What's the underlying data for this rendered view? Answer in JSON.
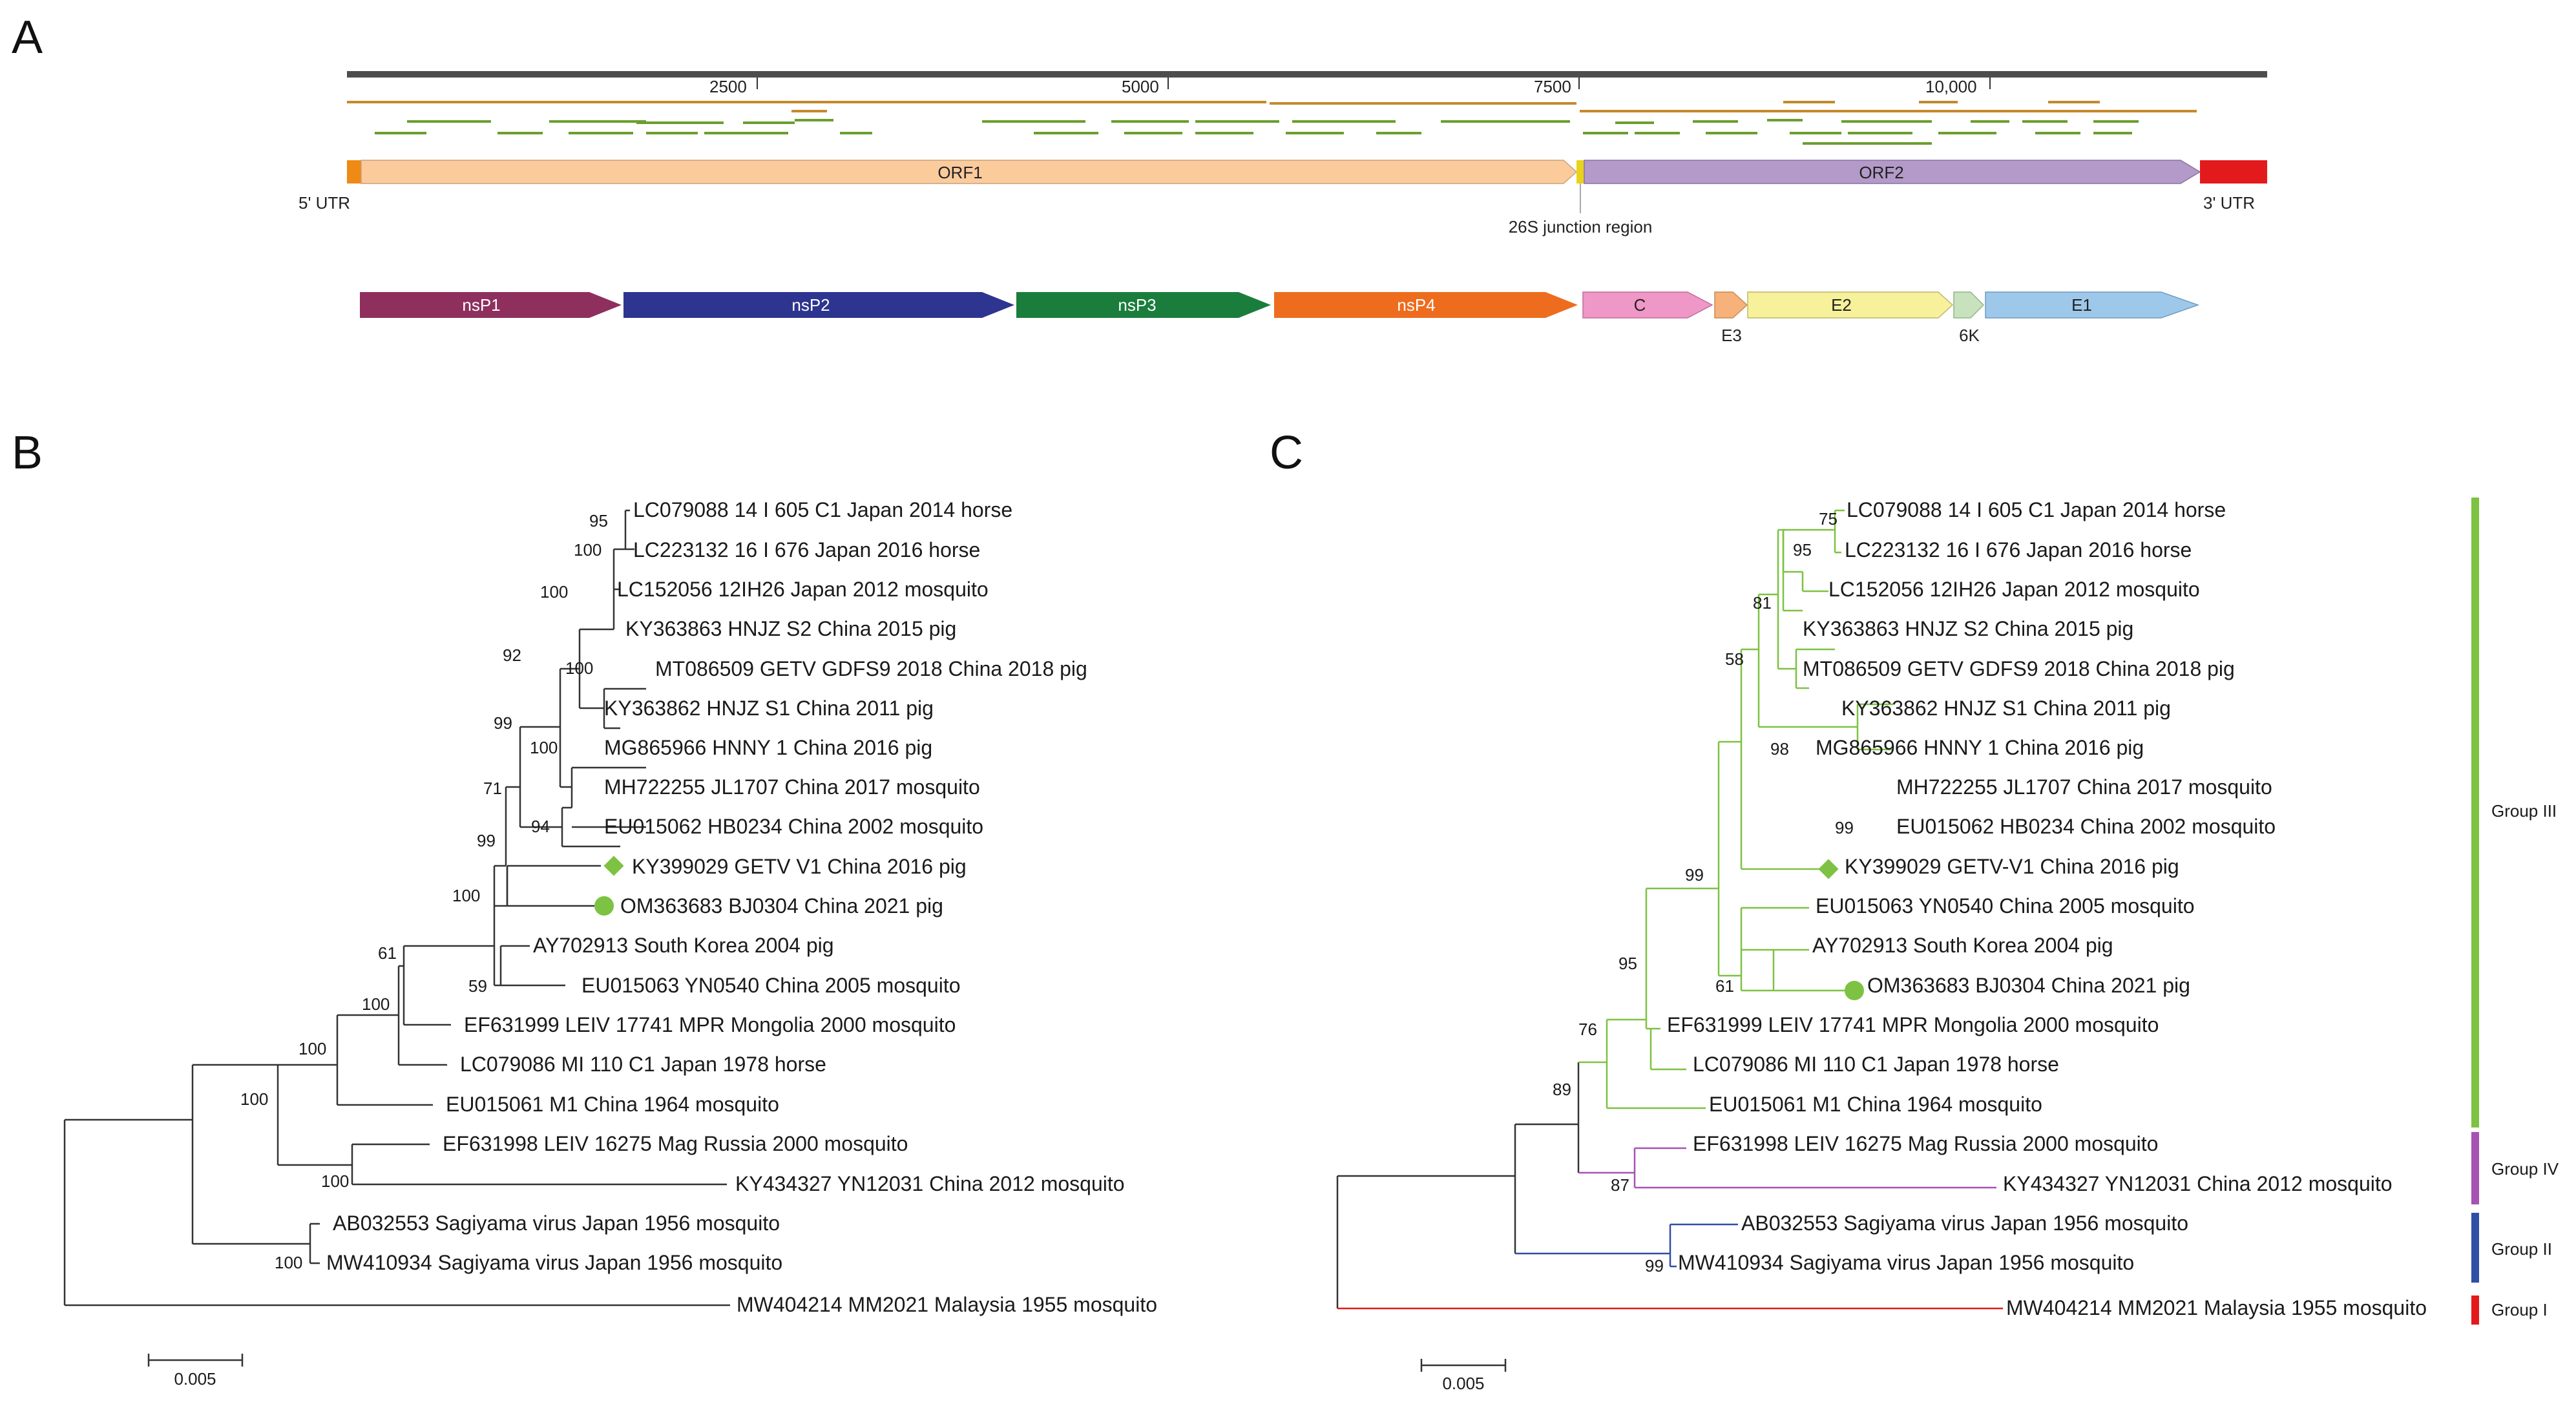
{
  "panels": {
    "a": "A",
    "b": "B",
    "c": "C"
  },
  "genome": {
    "ticks": [
      "2500",
      "5000",
      "7500",
      "10,000"
    ],
    "utr5": "5' UTR",
    "utr3": "3' UTR",
    "orf1": "ORF1",
    "orf2": "ORF2",
    "junction": "26S junction region",
    "proteins": [
      "nsP1",
      "nsP2",
      "nsP3",
      "nsP4",
      "C",
      "E2",
      "E1"
    ],
    "small_labels": [
      "E3",
      "6K"
    ]
  },
  "tree_b": {
    "leaves": [
      "LC079088 14 I 605 C1 Japan 2014 horse",
      "LC223132 16 I 676 Japan 2016 horse",
      "LC152056 12IH26 Japan 2012 mosquito",
      "KY363863 HNJZ S2 China 2015 pig",
      "MT086509 GETV GDFS9 2018 China 2018 pig",
      "KY363862 HNJZ S1 China 2011 pig",
      "MG865966 HNNY 1 China 2016 pig",
      "MH722255 JL1707 China 2017 mosquito",
      "EU015062 HB0234 China 2002 mosquito",
      "KY399029 GETV V1 China 2016 pig",
      "OM363683 BJ0304 China 2021 pig",
      "AY702913 South Korea 2004 pig",
      "EU015063 YN0540 China 2005 mosquito",
      "EF631999 LEIV 17741 MPR Mongolia 2000 mosquito",
      "LC079086 MI 110 C1 Japan 1978 horse",
      "EU015061 M1 China 1964 mosquito",
      "EF631998 LEIV 16275 Mag Russia 2000 mosquito",
      "KY434327 YN12031 China 2012 mosquito",
      "AB032553 Sagiyama virus Japan 1956 mosquito",
      "MW410934 Sagiyama virus Japan 1956 mosquito",
      "MW404214 MM2021 Malaysia 1955 mosquito"
    ],
    "bootstraps": [
      "95",
      "100",
      "100",
      "92",
      "100",
      "99",
      "100",
      "71",
      "94",
      "99",
      "100",
      "61",
      "59",
      "100",
      "100",
      "100",
      "100",
      "100"
    ],
    "scale": "0.005"
  },
  "tree_c": {
    "leaves": [
      "LC079088 14 I 605 C1 Japan 2014 horse",
      "LC223132 16 I 676 Japan 2016 horse",
      "LC152056 12IH26 Japan 2012 mosquito",
      "KY363863 HNJZ S2 China 2015 pig",
      "MT086509 GETV GDFS9 2018 China 2018 pig",
      "KY363862 HNJZ S1 China 2011 pig",
      "MG865966 HNNY 1 China 2016 pig",
      "MH722255 JL1707 China 2017 mosquito",
      "EU015062 HB0234 China 2002 mosquito",
      "KY399029 GETV-V1 China 2016 pig",
      "EU015063 YN0540 China 2005 mosquito",
      "AY702913 South Korea 2004 pig",
      "OM363683 BJ0304 China 2021 pig",
      "EF631999 LEIV 17741 MPR Mongolia 2000 mosquito",
      "LC079086 MI 110 C1 Japan 1978 horse",
      "EU015061 M1 China 1964 mosquito",
      "EF631998 LEIV 16275 Mag Russia 2000 mosquito",
      "KY434327 YN12031 China 2012 mosquito",
      "AB032553 Sagiyama virus Japan 1956 mosquito",
      "MW410934 Sagiyama virus Japan 1956 mosquito",
      "MW404214 MM2021 Malaysia 1955 mosquito"
    ],
    "bootstraps": [
      "75",
      "95",
      "81",
      "58",
      "98",
      "99",
      "99",
      "61",
      "95",
      "76",
      "89",
      "87",
      "99"
    ],
    "groups": [
      "Group III",
      "Group IV",
      "Group II",
      "Group I"
    ],
    "scale": "0.005"
  },
  "colors": {
    "nsP1": "#8e2f5e",
    "nsP2": "#2d3590",
    "nsP3": "#1a7d3c",
    "nsP4": "#ee6c1e",
    "C": "#ef97c6",
    "E3": "#f6b27a",
    "E2": "#f6f19a",
    "6K": "#c7e2bd",
    "E1": "#9ec8ea",
    "orf1": "#fccb9c",
    "orf2": "#b39ac8",
    "utr5": "#ef8a14",
    "utr3": "#e31a1c",
    "junction": "#e8d21c",
    "group3": "#7dc242",
    "group4": "#a653b2",
    "group2": "#2e4fa5",
    "group1": "#e31a1c",
    "marker": "#7dc242"
  }
}
